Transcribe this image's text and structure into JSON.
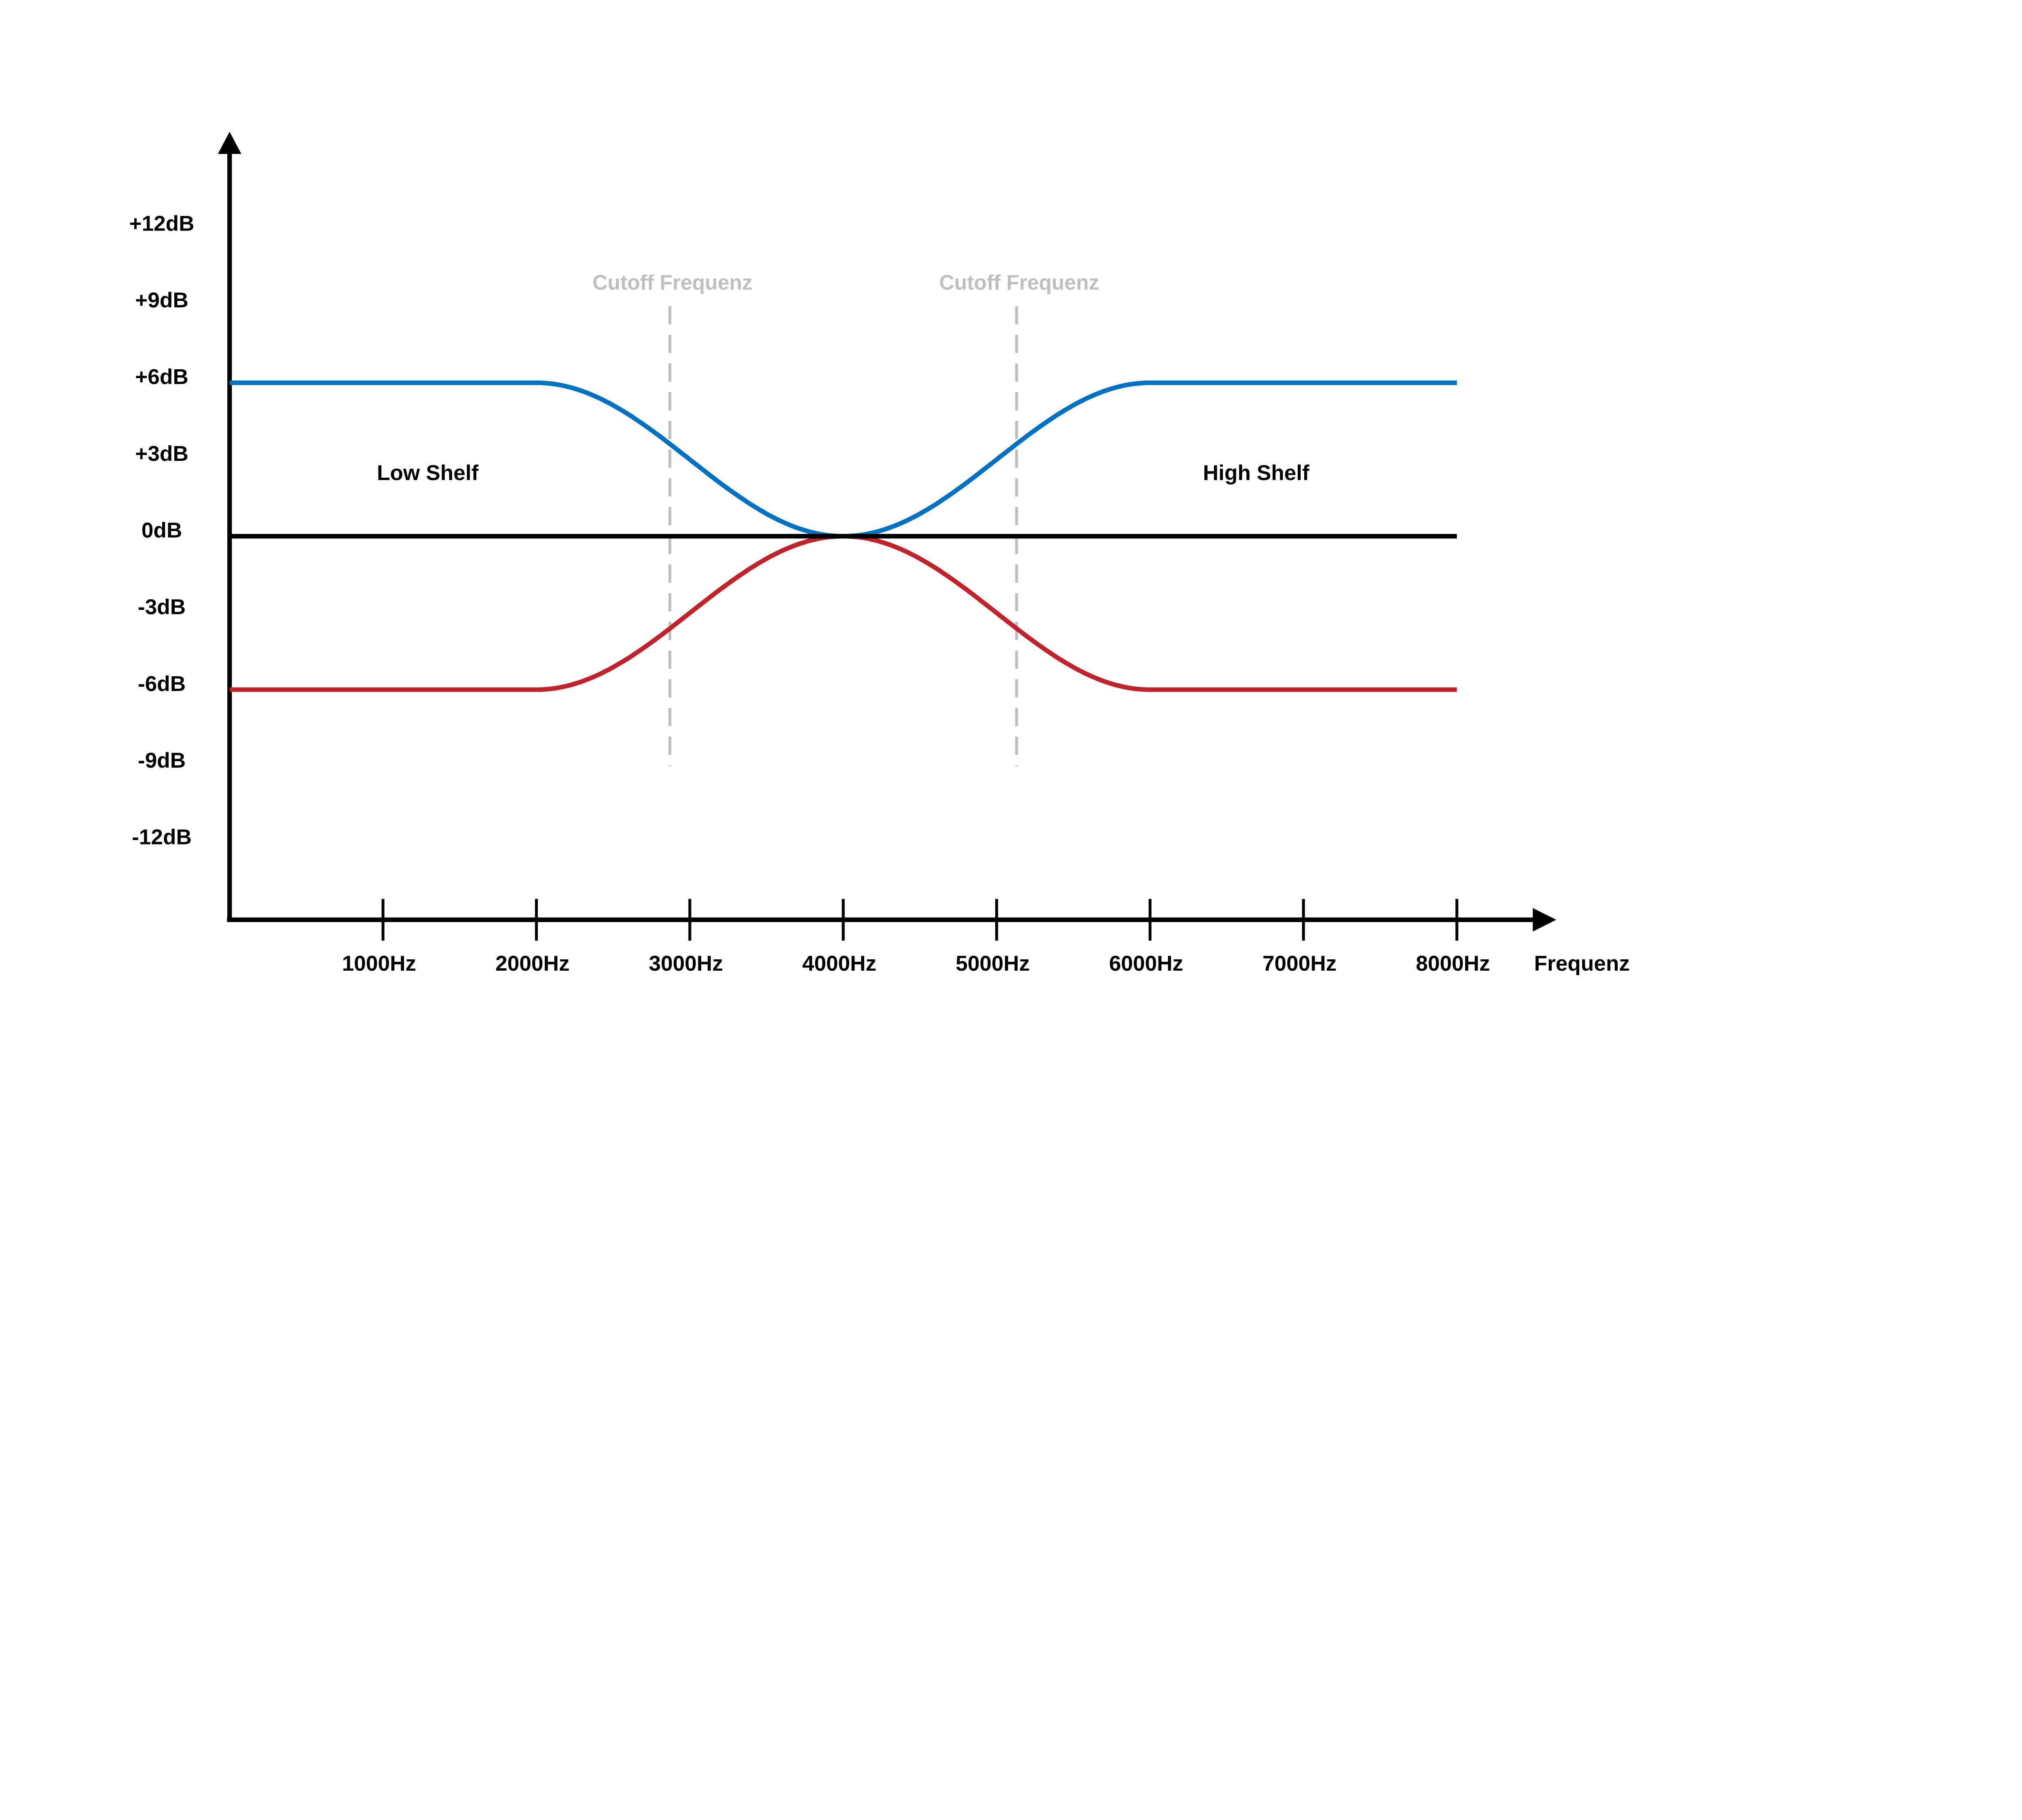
{
  "chart_data": {
    "type": "line",
    "title": "",
    "xlabel": "Frequenz",
    "ylabel": "",
    "xlim": [
      0,
      8000
    ],
    "ylim": [
      -12,
      12
    ],
    "x_ticks": [
      1000,
      2000,
      3000,
      4000,
      5000,
      6000,
      7000,
      8000
    ],
    "x_tick_labels": [
      "1000Hz",
      "2000Hz",
      "3000Hz",
      "4000Hz",
      "5000Hz",
      "6000Hz",
      "7000Hz",
      "8000Hz"
    ],
    "y_ticks": [
      12,
      9,
      6,
      3,
      0,
      -3,
      -6,
      -9,
      -12
    ],
    "y_tick_labels": [
      "+12dB",
      "+9dB",
      "+6dB",
      "+3dB",
      "0dB",
      "-3dB",
      "-6dB",
      "-9dB",
      "-12dB"
    ],
    "grid": false,
    "series": [
      {
        "color": "#0070C0",
        "x": [
          0,
          2000,
          2500,
          2870,
          3000,
          3500,
          4000,
          4500,
          5000,
          5130,
          5500,
          6000,
          8000
        ],
        "values": [
          6,
          6,
          5.1,
          3.6,
          3,
          0.9,
          0,
          0.9,
          3,
          3.6,
          5.1,
          6,
          6
        ]
      },
      {
        "color": "#C0232C",
        "x": [
          0,
          2000,
          2500,
          2870,
          3000,
          3500,
          4000,
          4500,
          5000,
          5130,
          5500,
          6000,
          8000
        ],
        "values": [
          -6,
          -6,
          -5.1,
          -3.6,
          -3,
          -0.9,
          0,
          -0.9,
          -3,
          -3.6,
          -5.1,
          -6,
          -6
        ]
      },
      {
        "color": "#000000",
        "x": [
          0,
          8000
        ],
        "values": [
          0,
          0
        ]
      }
    ],
    "vlines": [
      {
        "x": 2870,
        "label": "Cutoff Frequenz",
        "color": "#BFBFBF",
        "style": "dashed",
        "y_range": [
          -9,
          9
        ]
      },
      {
        "x": 5130,
        "label": "Cutoff Frequenz",
        "color": "#BFBFBF",
        "style": "dashed",
        "y_range": [
          -9,
          9
        ]
      }
    ],
    "annotations": [
      {
        "text": "Low Shelf",
        "x": 1300,
        "y": 2.5
      },
      {
        "text": "High Shelf",
        "x": 6700,
        "y": 2.5
      }
    ]
  }
}
